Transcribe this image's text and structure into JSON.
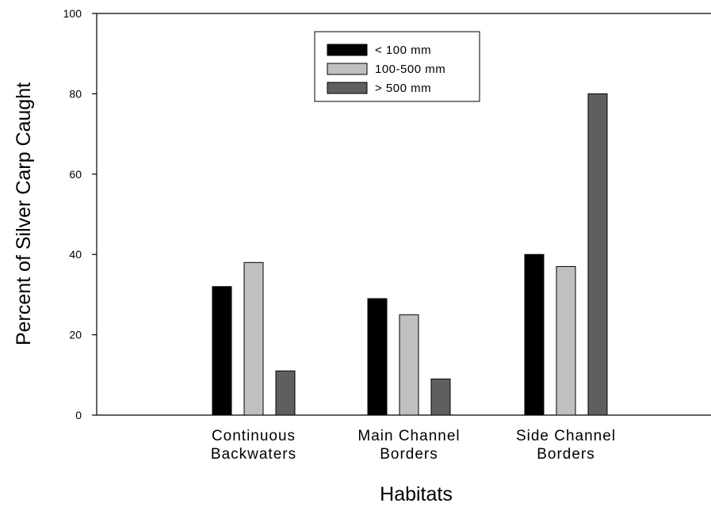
{
  "chart_data": {
    "type": "bar",
    "title": "",
    "xlabel": "Habitats",
    "ylabel": "Percent of Silver Carp Caught",
    "ylim": [
      0,
      100
    ],
    "yticks": [
      "0",
      "20",
      "40",
      "60",
      "80",
      "100"
    ],
    "categories": [
      [
        "Continuous",
        "Backwaters"
      ],
      [
        "Main Channel",
        "Borders"
      ],
      [
        "Side Channel",
        "Borders"
      ]
    ],
    "series": [
      {
        "name": "< 100 mm",
        "values": [
          32,
          29,
          40
        ],
        "color": "#000000"
      },
      {
        "name": "100-500 mm",
        "values": [
          38,
          25,
          37
        ],
        "color": "#c0c0c0"
      },
      {
        "name": "> 500 mm",
        "values": [
          11,
          9,
          80
        ],
        "color": "#5f5f5f"
      }
    ],
    "grid": false,
    "legend_position": "top-center"
  }
}
